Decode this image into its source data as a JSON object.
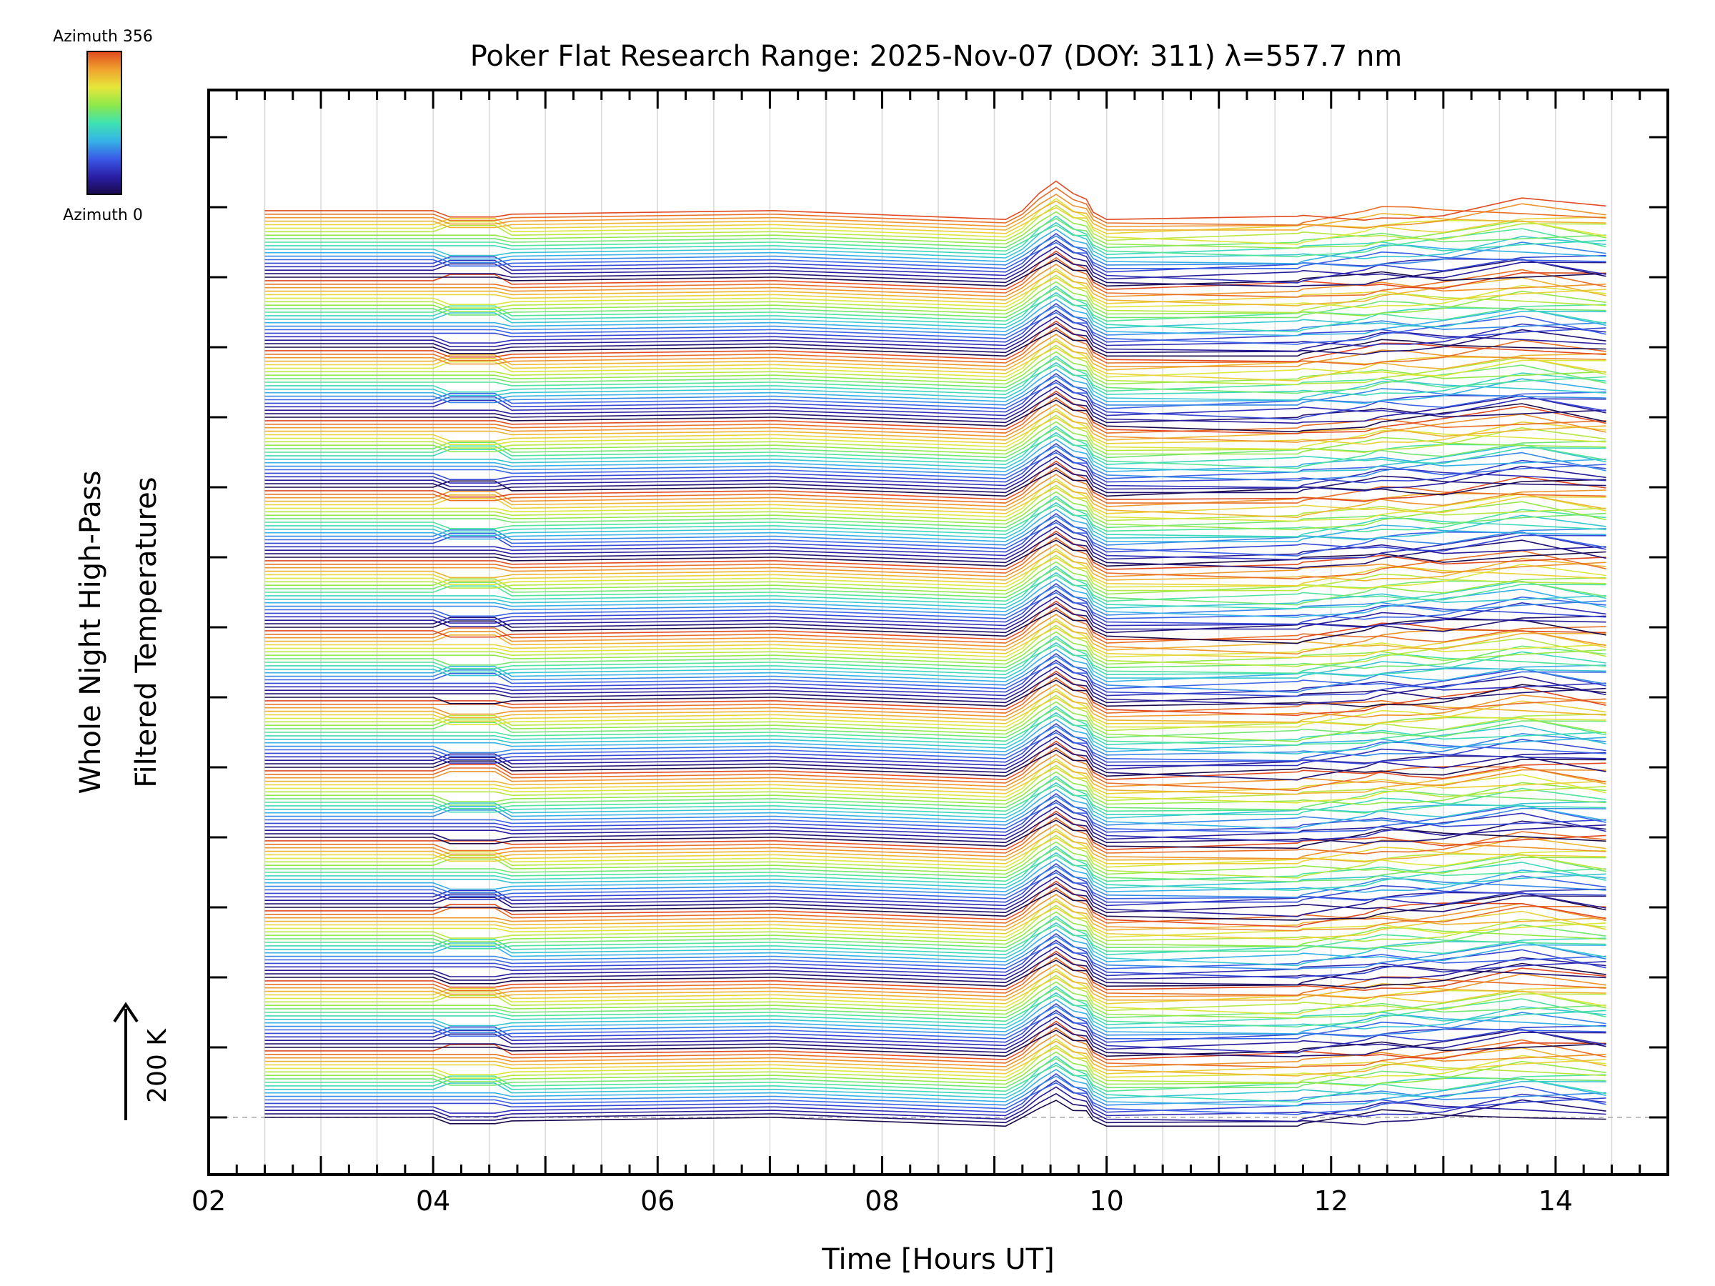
{
  "chart_data": {
    "type": "line",
    "title": "Poker Flat Research Range: 2025-Nov-07 (DOY: 311) λ=557.7 nm",
    "xlabel": "Time [Hours UT]",
    "ylabel_line1": "Whole Night High-Pass",
    "ylabel_line2": "Filtered Temperatures",
    "xlim": [
      2,
      15
    ],
    "x_ticks": [
      2,
      4,
      6,
      8,
      10,
      12,
      14
    ],
    "x_tick_labels": [
      "02",
      "04",
      "06",
      "08",
      "10",
      "12",
      "14"
    ],
    "x_minor_step": 0.25,
    "y_major_ticks": 15,
    "scale_bar": {
      "label": "200 K",
      "kelvin": 200
    },
    "legend": {
      "top_label": "Azimuth 356",
      "bottom_label": "Azimuth 0",
      "azimuth_range": [
        0,
        356
      ],
      "placement": "top-left"
    },
    "colormap": [
      "#1a0a4a",
      "#2a1ea8",
      "#3a5ae6",
      "#35b4e6",
      "#3ee2b0",
      "#8ee84a",
      "#e6e63a",
      "#f0a22e",
      "#e04a20"
    ],
    "time_samples": [
      2.5,
      2.7,
      4.0,
      4.15,
      4.35,
      4.55,
      4.7,
      7.0,
      7.05,
      9.1,
      9.25,
      9.4,
      9.55,
      9.7,
      9.82,
      9.88,
      10.0,
      11.7,
      11.75,
      12.3,
      12.45,
      12.7,
      13.0,
      13.7,
      14.45
    ],
    "line_groups": 13,
    "lines_per_group": 20,
    "group_base_temps_K": [
      0,
      200,
      400,
      600,
      800,
      1000,
      1200,
      1400,
      1600,
      1800,
      2000,
      2200,
      2400
    ],
    "traces": {
      "group_0_azimuth_0": [
        0,
        0,
        0,
        0,
        0,
        0,
        -10,
        0,
        0,
        -25,
        0,
        10,
        25,
        0,
        10,
        -10,
        -25,
        -25,
        -20,
        -10,
        0,
        0,
        0,
        20,
        0
      ],
      "event_peak_K": 60
    }
  }
}
